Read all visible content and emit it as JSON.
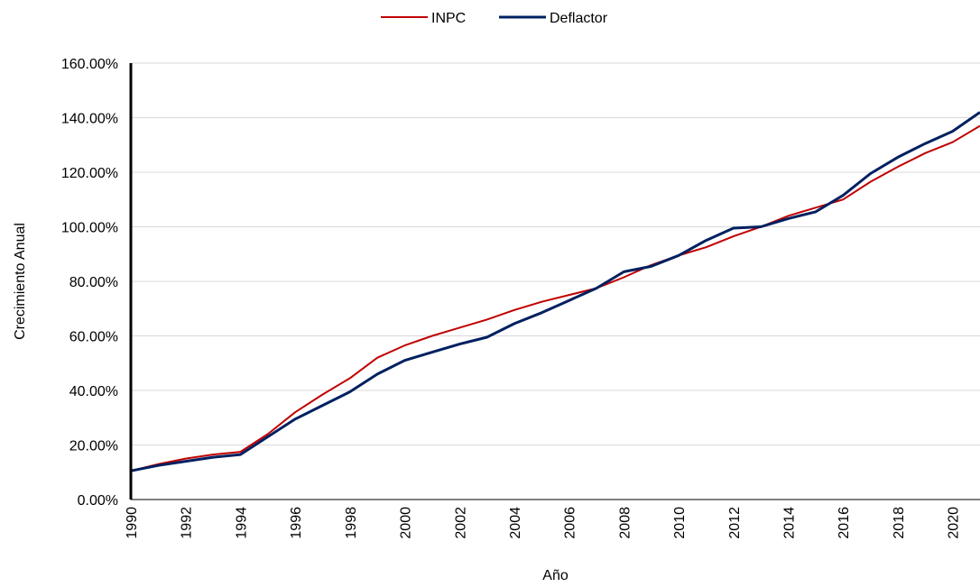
{
  "chart_data": {
    "type": "line",
    "title": "",
    "xlabel": "Año",
    "ylabel": "Crecimiento Anual",
    "x": [
      1990,
      1991,
      1992,
      1993,
      1994,
      1995,
      1996,
      1997,
      1998,
      1999,
      2000,
      2001,
      2002,
      2003,
      2004,
      2005,
      2006,
      2007,
      2008,
      2009,
      2010,
      2011,
      2012,
      2013,
      2014,
      2015,
      2016,
      2017,
      2018,
      2019,
      2020,
      2021
    ],
    "x_tick_labels": [
      "1990",
      "1992",
      "1994",
      "1996",
      "1998",
      "2000",
      "2002",
      "2004",
      "2006",
      "2008",
      "2010",
      "2012",
      "2014",
      "2016",
      "2018",
      "2020"
    ],
    "y_tick_labels": [
      "0.00%",
      "20.00%",
      "40.00%",
      "60.00%",
      "80.00%",
      "100.00%",
      "120.00%",
      "140.00%",
      "160.00%"
    ],
    "ylim": [
      0,
      160
    ],
    "xlim": [
      1990,
      2021
    ],
    "grid": "horizontal",
    "legend_position": "top-center",
    "series": [
      {
        "name": "INPC",
        "color": "#c00000",
        "values": [
          10.5,
          13,
          15,
          16.5,
          17.5,
          24,
          32,
          38.5,
          44.5,
          52,
          56.5,
          60,
          63,
          66,
          69.5,
          72.5,
          75,
          77.5,
          81.5,
          86,
          89.5,
          92.5,
          96.5,
          100,
          104,
          107,
          110,
          116.5,
          122,
          127,
          131,
          137
        ]
      },
      {
        "name": "Deflactor",
        "color": "#002060",
        "values": [
          10.5,
          12.5,
          14,
          15.5,
          16.5,
          23,
          29.5,
          34.5,
          39.5,
          46,
          51,
          54,
          57,
          59.5,
          64.5,
          68.5,
          73,
          77.5,
          83.5,
          85.5,
          89.5,
          95,
          99.5,
          100,
          103,
          105.5,
          111.5,
          119.5,
          125.5,
          130.5,
          135,
          142
        ]
      }
    ]
  }
}
